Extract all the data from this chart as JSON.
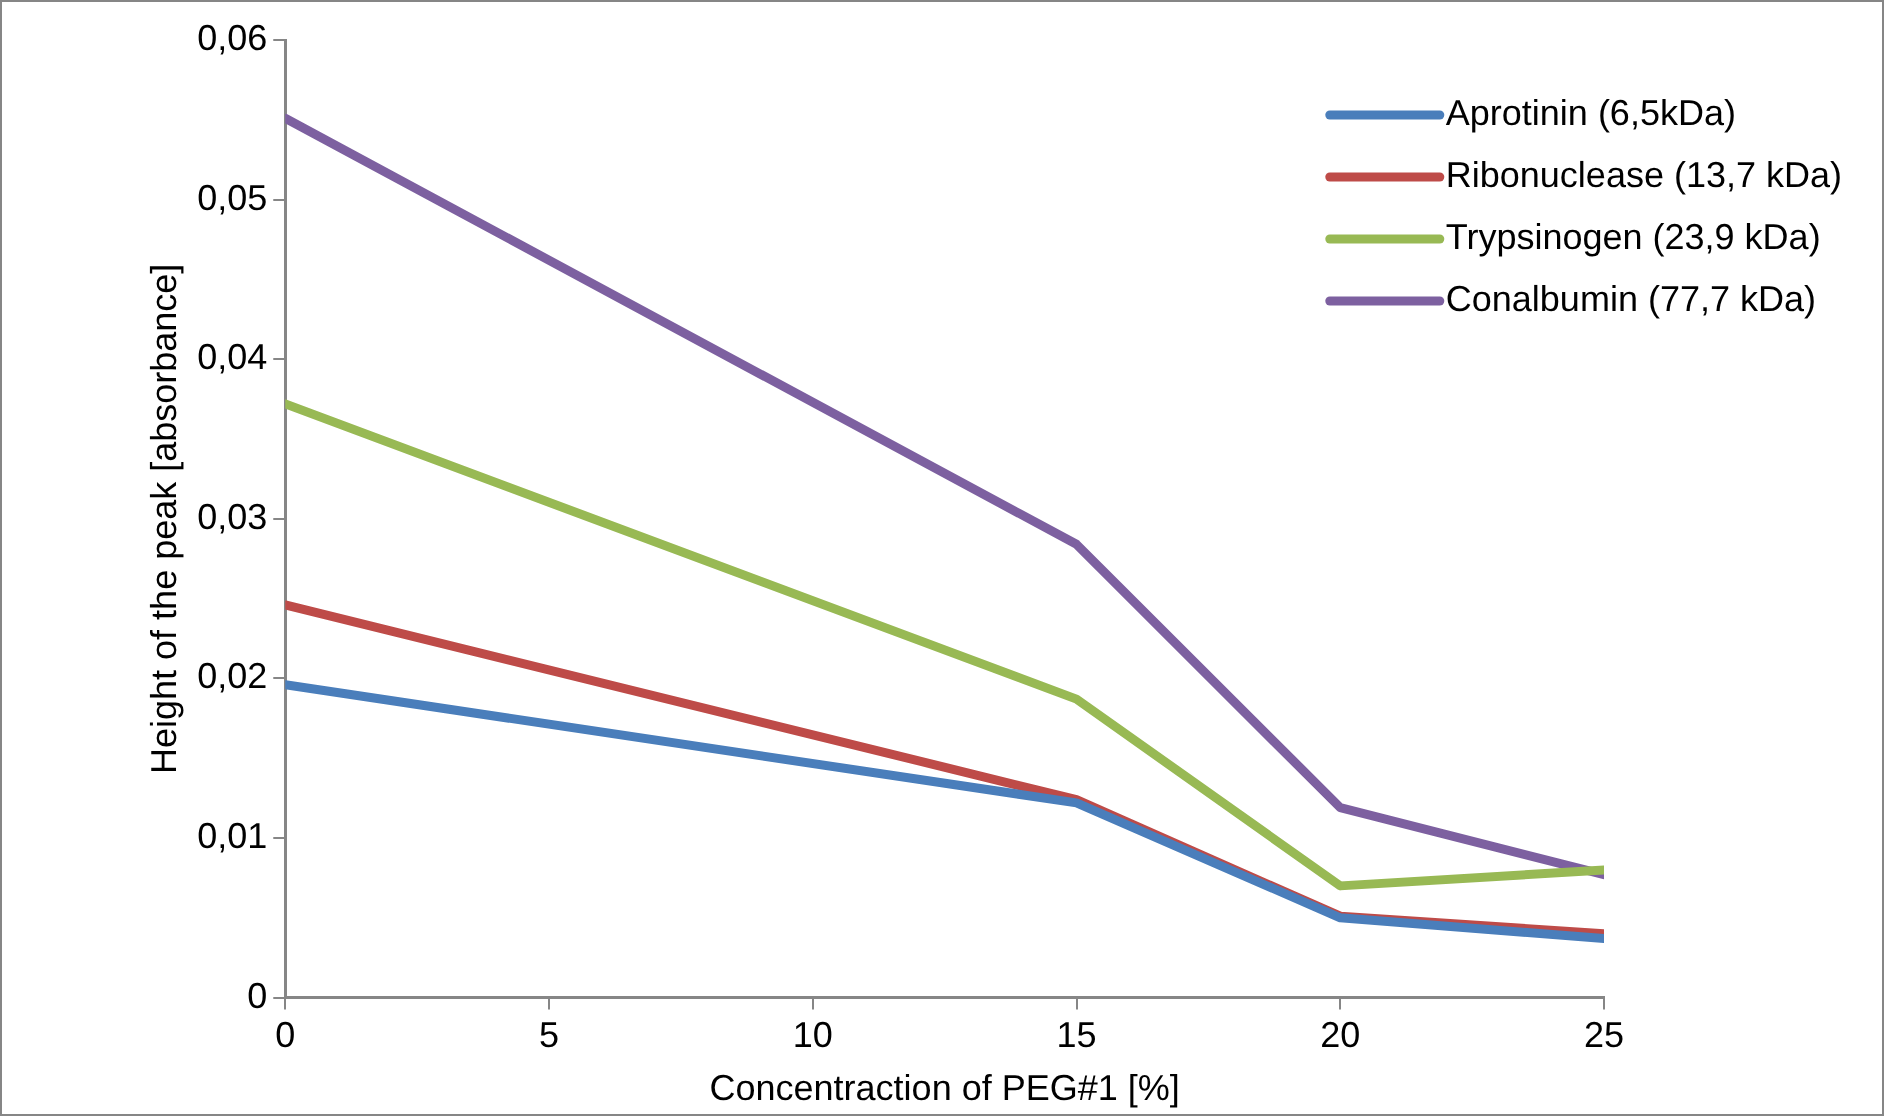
{
  "chart_data": {
    "type": "line",
    "xlabel": "Concentraction of PEG#1 [%]",
    "ylabel": "Height of the peak [absorbance]",
    "x": [
      0,
      15,
      20,
      25
    ],
    "series": [
      {
        "name": "Aprotinin (6,5kDa)",
        "color": "#4a7ebb",
        "values": [
          0.0196,
          0.0122,
          0.005,
          0.0037
        ]
      },
      {
        "name": "Ribonuclease (13,7 kDa)",
        "color": "#be4b48",
        "values": [
          0.0246,
          0.0124,
          0.0051,
          0.004
        ]
      },
      {
        "name": "Trypsinogen (23,9 kDa)",
        "color": "#98b954",
        "values": [
          0.0372,
          0.0187,
          0.007,
          0.008
        ]
      },
      {
        "name": "Conalbumin (77,7 kDa)",
        "color": "#7d60a0",
        "values": [
          0.0551,
          0.0284,
          0.0119,
          0.0077
        ]
      }
    ],
    "xlim": [
      0,
      25
    ],
    "xticks": [
      0,
      5,
      10,
      15,
      20,
      25
    ],
    "ylim": [
      0,
      0.06
    ],
    "yticks": [
      {
        "value": 0,
        "label": "0"
      },
      {
        "value": 0.01,
        "label": "0,01"
      },
      {
        "value": 0.02,
        "label": "0,02"
      },
      {
        "value": 0.03,
        "label": "0,03"
      },
      {
        "value": 0.04,
        "label": "0,04"
      },
      {
        "value": 0.05,
        "label": "0,05"
      },
      {
        "value": 0.06,
        "label": "0,06"
      }
    ],
    "grid": false,
    "legend": "top right",
    "marker": "none",
    "line_style": "solid"
  }
}
